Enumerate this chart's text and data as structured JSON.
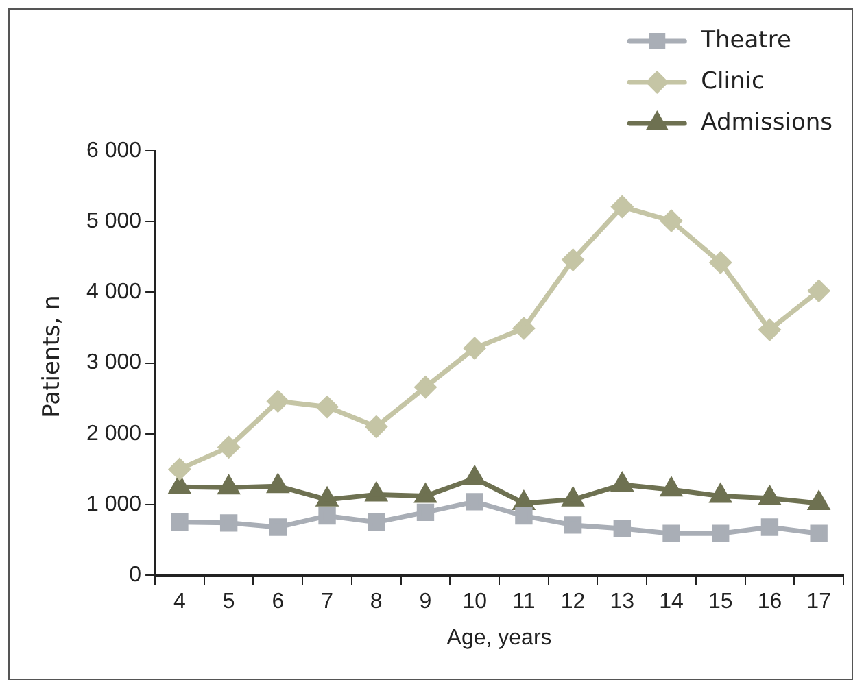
{
  "chart_data": {
    "type": "line",
    "xlabel": "Age, years",
    "ylabel": "Patients, n",
    "categories": [
      "4",
      "5",
      "6",
      "7",
      "8",
      "9",
      "10",
      "11",
      "12",
      "13",
      "14",
      "15",
      "16",
      "17"
    ],
    "series": [
      {
        "name": "Theatre",
        "color": "#a9aeb6",
        "marker": "square",
        "values": [
          750,
          740,
          680,
          840,
          750,
          890,
          1040,
          840,
          710,
          660,
          590,
          590,
          680,
          590
        ]
      },
      {
        "name": "Clinic",
        "color": "#c5c5a5",
        "marker": "diamond",
        "values": [
          1500,
          1810,
          2460,
          2380,
          2100,
          2660,
          3210,
          3490,
          4460,
          5210,
          5010,
          4420,
          3470,
          4020
        ]
      },
      {
        "name": "Admissions",
        "color": "#6e7151",
        "marker": "triangle",
        "values": [
          1250,
          1240,
          1260,
          1070,
          1140,
          1120,
          1370,
          1020,
          1070,
          1280,
          1210,
          1120,
          1090,
          1020
        ]
      }
    ],
    "ylim": [
      0,
      6000
    ],
    "yticks": [
      {
        "value": 0,
        "label": "0"
      },
      {
        "value": 1000,
        "label": "1 000"
      },
      {
        "value": 2000,
        "label": "2 000"
      },
      {
        "value": 3000,
        "label": "3 000"
      },
      {
        "value": 4000,
        "label": "4 000"
      },
      {
        "value": 5000,
        "label": "5 000"
      },
      {
        "value": 6000,
        "label": "6 000"
      }
    ],
    "grid": false,
    "legend": "top right",
    "line_style": "solid"
  }
}
